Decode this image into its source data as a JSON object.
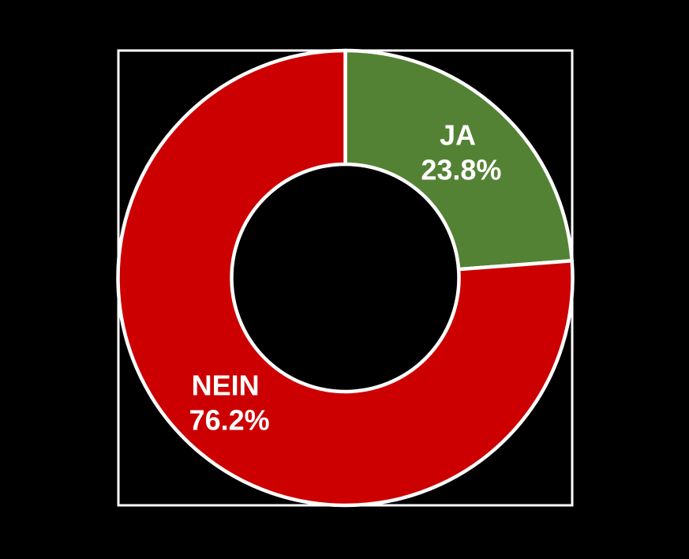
{
  "chart_data": {
    "type": "pie",
    "subtype": "donut",
    "title": "",
    "legend": "none",
    "background_color": "#000000",
    "plot_border_color": "#FFFFFF",
    "segment_stroke_color": "#FFFFFF",
    "label_text_color": "#FFFFFF",
    "categories": [
      "JA",
      "NEIN"
    ],
    "values": [
      23.8,
      76.2
    ],
    "segments": [
      {
        "label": "JA",
        "value": 23.8,
        "percent_label": "23.8%",
        "color": "#548235"
      },
      {
        "label": "NEIN",
        "value": 76.2,
        "percent_label": "76.2%",
        "color": "#CC0000"
      }
    ]
  }
}
